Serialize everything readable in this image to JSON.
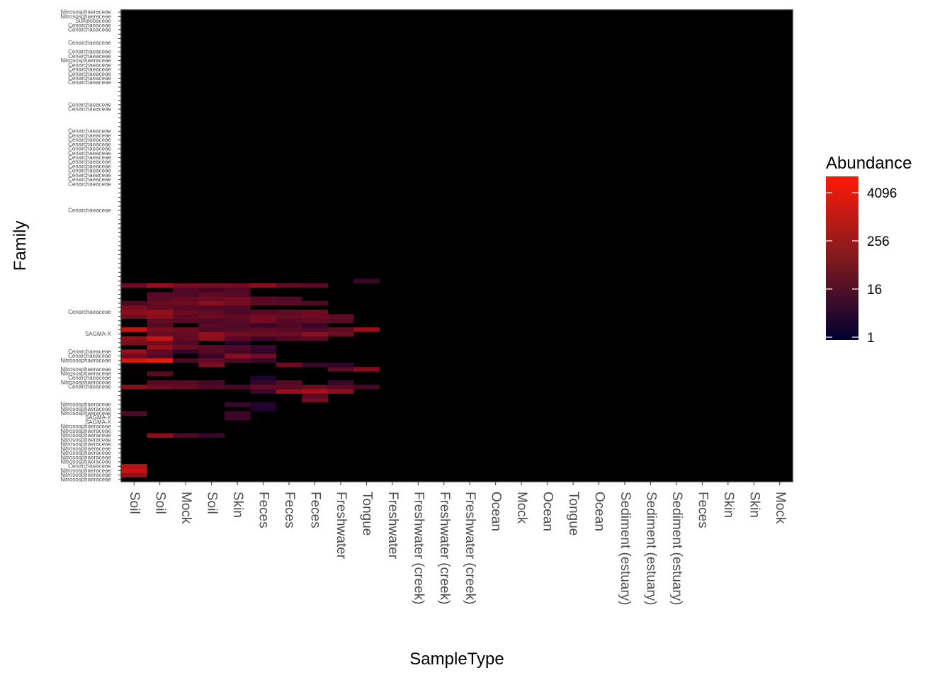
{
  "chart_data": {
    "type": "heatmap",
    "xlabel": "SampleType",
    "ylabel": "Family",
    "x_categories": [
      "Soil",
      "Soil",
      "Mock",
      "Soil",
      "Skin",
      "Feces",
      "Feces",
      "Feces",
      "Freshwater",
      "Tongue",
      "Freshwater",
      "Freshwater (creek)",
      "Freshwater (creek)",
      "Freshwater (creek)",
      "Ocean",
      "Mock",
      "Ocean",
      "Tongue",
      "Ocean",
      "Sediment (estuary)",
      "Sediment (estuary)",
      "Sediment (estuary)",
      "Feces",
      "Skin",
      "Skin",
      "Mock"
    ],
    "y_tick_labels": [
      "Nitrososphaeraceae",
      "Nitrososphaeraceae",
      "Sulfolobaceae",
      "Cenarchaeaceae",
      "Cenarchaeaceae",
      "",
      "",
      "Cenarchaeaceae",
      "",
      "Cenarchaeaceae",
      "Cenarchaeaceae",
      "Nitrososphaeraceae",
      "Cenarchaeaceae",
      "Cenarchaeaceae",
      "Cenarchaeaceae",
      "Cenarchaeaceae",
      "Cenarchaeaceae",
      "",
      "",
      "",
      "",
      "Cenarchaeaceae",
      "Cenarchaeaceae",
      "",
      "",
      "",
      "",
      "Cenarchaeaceae",
      "Cenarchaeaceae",
      "Cenarchaeaceae",
      "Cenarchaeaceae",
      "Cenarchaeaceae",
      "Cenarchaeaceae",
      "Cenarchaeaceae",
      "Cenarchaeaceae",
      "Cenarchaeaceae",
      "Cenarchaeaceae",
      "Cenarchaeaceae",
      "Cenarchaeaceae",
      "Cenarchaeaceae",
      "",
      "",
      "",
      "",
      "",
      "Cenarchaeaceae",
      "",
      "",
      "",
      "",
      "",
      "",
      "",
      "",
      "",
      "",
      "",
      "",
      "",
      "",
      "",
      "",
      "",
      "",
      "",
      "",
      "",
      "",
      "Cenarchaeaceae",
      "",
      "",
      "",
      "",
      "SAGMA-X",
      "",
      "",
      "",
      "Cenarchaeaceae",
      "Cenarchaeaceae",
      "Nitrososphaeraceae",
      "",
      "Nitrososphaeraceae",
      "Nitrososphaeraceae",
      "Cenarchaeaceae",
      "Nitrososphaeraceae",
      "Cenarchaeaceae",
      "",
      "",
      "",
      "Nitrososphaeraceae",
      "Nitrososphaeraceae",
      "Nitrososphaeraceae",
      "SAGMA-X",
      "SAGMA-X",
      "Nitrososphaeraceae",
      "Nitrososphaeraceae",
      "Nitrososphaeraceae",
      "Nitrososphaeraceae",
      "Nitrososphaeraceae",
      "Nitrososphaeraceae",
      "Nitrososphaeraceae",
      "Nitrososphaeraceae",
      "Nitrososphaeraceae",
      "Cenarchaeaceae",
      "Nitrososphaeraceae",
      "Nitrososphaeraceae",
      "Nitrososphaeraceae"
    ],
    "color_scale": {
      "name": "Abundance",
      "transform": "log2",
      "low": "#000033",
      "high": "#FF1A08",
      "breaks": [
        1,
        16,
        256,
        4096
      ],
      "domain": [
        1,
        16384
      ]
    },
    "panel_background": "#000000",
    "cells": [
      [
        0,
        1,
        300
      ],
      [
        0,
        2,
        2000
      ],
      [
        0,
        3,
        1000
      ],
      [
        1,
        10,
        200
      ],
      [
        2,
        10,
        20
      ],
      [
        3,
        10,
        8
      ],
      [
        4,
        14,
        10
      ],
      [
        5,
        16,
        3
      ],
      [
        0,
        15,
        20
      ],
      [
        4,
        15,
        10
      ],
      [
        4,
        17,
        8
      ],
      [
        5,
        17,
        4
      ],
      [
        7,
        18,
        80
      ],
      [
        7,
        19,
        30
      ],
      [
        5,
        20,
        10
      ],
      [
        6,
        20,
        300
      ],
      [
        7,
        20,
        600
      ],
      [
        8,
        20,
        200
      ],
      [
        0,
        21,
        200
      ],
      [
        1,
        21,
        60
      ],
      [
        2,
        21,
        40
      ],
      [
        3,
        21,
        20
      ],
      [
        4,
        21,
        15
      ],
      [
        5,
        21,
        40
      ],
      [
        6,
        21,
        30
      ],
      [
        7,
        21,
        60
      ],
      [
        8,
        21,
        30
      ],
      [
        9,
        21,
        15
      ],
      [
        1,
        22,
        30
      ],
      [
        2,
        22,
        30
      ],
      [
        3,
        22,
        15
      ],
      [
        5,
        22,
        8
      ],
      [
        6,
        22,
        30
      ],
      [
        8,
        22,
        10
      ],
      [
        5,
        23,
        3
      ],
      [
        1,
        24,
        30
      ],
      [
        8,
        25,
        30
      ],
      [
        9,
        25,
        150
      ],
      [
        3,
        26,
        100
      ],
      [
        6,
        26,
        60
      ],
      [
        7,
        26,
        8
      ],
      [
        8,
        26,
        6
      ],
      [
        0,
        27,
        4000
      ],
      [
        1,
        27,
        8000
      ],
      [
        2,
        27,
        20
      ],
      [
        3,
        27,
        40
      ],
      [
        4,
        27,
        20
      ],
      [
        5,
        27,
        8
      ],
      [
        0,
        28,
        60
      ],
      [
        1,
        28,
        20
      ],
      [
        3,
        28,
        8
      ],
      [
        4,
        28,
        200
      ],
      [
        5,
        28,
        80
      ],
      [
        0,
        29,
        300
      ],
      [
        1,
        29,
        40
      ],
      [
        2,
        29,
        6
      ],
      [
        3,
        29,
        30
      ],
      [
        4,
        29,
        15
      ],
      [
        5,
        29,
        6
      ],
      [
        1,
        30,
        300
      ],
      [
        2,
        30,
        60
      ],
      [
        3,
        30,
        30
      ],
      [
        4,
        30,
        20
      ],
      [
        5,
        30,
        8
      ],
      [
        0,
        31,
        100
      ],
      [
        1,
        31,
        80
      ],
      [
        2,
        31,
        20
      ],
      [
        4,
        31,
        4
      ],
      [
        0,
        32,
        200
      ],
      [
        1,
        32,
        2000
      ],
      [
        2,
        32,
        40
      ],
      [
        3,
        32,
        200
      ],
      [
        4,
        32,
        30
      ],
      [
        5,
        32,
        10
      ],
      [
        6,
        32,
        20
      ],
      [
        7,
        32,
        30
      ],
      [
        1,
        33,
        50
      ],
      [
        2,
        33,
        50
      ],
      [
        3,
        33,
        300
      ],
      [
        4,
        33,
        80
      ],
      [
        5,
        33,
        60
      ],
      [
        6,
        33,
        60
      ],
      [
        7,
        33,
        200
      ],
      [
        8,
        33,
        60
      ],
      [
        0,
        34,
        2000
      ],
      [
        1,
        34,
        100
      ],
      [
        2,
        34,
        60
      ],
      [
        3,
        34,
        20
      ],
      [
        4,
        34,
        30
      ],
      [
        5,
        34,
        40
      ],
      [
        6,
        34,
        30
      ],
      [
        7,
        34,
        20
      ],
      [
        8,
        34,
        40
      ],
      [
        9,
        34,
        300
      ],
      [
        1,
        35,
        30
      ],
      [
        3,
        35,
        30
      ],
      [
        4,
        35,
        20
      ],
      [
        5,
        35,
        10
      ],
      [
        6,
        35,
        20
      ],
      [
        7,
        35,
        8
      ],
      [
        1,
        36,
        40
      ],
      [
        2,
        36,
        30
      ],
      [
        3,
        36,
        20
      ],
      [
        4,
        36,
        30
      ],
      [
        5,
        36,
        80
      ],
      [
        6,
        36,
        30
      ],
      [
        7,
        36,
        40
      ],
      [
        8,
        36,
        30
      ],
      [
        0,
        37,
        80
      ],
      [
        1,
        37,
        200
      ],
      [
        2,
        37,
        40
      ],
      [
        3,
        37,
        60
      ],
      [
        4,
        37,
        40
      ],
      [
        5,
        37,
        80
      ],
      [
        6,
        37,
        50
      ],
      [
        7,
        37,
        60
      ],
      [
        8,
        37,
        40
      ],
      [
        0,
        38,
        200
      ],
      [
        1,
        38,
        300
      ],
      [
        2,
        38,
        60
      ],
      [
        3,
        38,
        40
      ],
      [
        4,
        38,
        20
      ],
      [
        5,
        38,
        30
      ],
      [
        6,
        38,
        40
      ],
      [
        7,
        38,
        60
      ],
      [
        0,
        39,
        100
      ],
      [
        1,
        39,
        40
      ],
      [
        2,
        39,
        30
      ],
      [
        3,
        39,
        20
      ],
      [
        4,
        39,
        20
      ],
      [
        0,
        40,
        20
      ],
      [
        1,
        40,
        50
      ],
      [
        2,
        40,
        60
      ],
      [
        3,
        40,
        200
      ],
      [
        4,
        40,
        80
      ],
      [
        5,
        40,
        30
      ],
      [
        6,
        40,
        30
      ],
      [
        7,
        40,
        20
      ],
      [
        1,
        41,
        30
      ],
      [
        2,
        41,
        50
      ],
      [
        3,
        41,
        60
      ],
      [
        4,
        41,
        80
      ],
      [
        5,
        41,
        30
      ],
      [
        6,
        41,
        20
      ],
      [
        1,
        42,
        30
      ],
      [
        2,
        42,
        20
      ],
      [
        3,
        42,
        40
      ],
      [
        4,
        42,
        30
      ],
      [
        2,
        43,
        20
      ],
      [
        3,
        43,
        15
      ],
      [
        4,
        43,
        20
      ],
      [
        0,
        44,
        60
      ],
      [
        1,
        44,
        300
      ],
      [
        2,
        44,
        100
      ],
      [
        3,
        44,
        80
      ],
      [
        4,
        44,
        80
      ],
      [
        5,
        44,
        200
      ],
      [
        6,
        44,
        40
      ],
      [
        7,
        44,
        30
      ],
      [
        9,
        45,
        10
      ]
    ]
  },
  "legend": {
    "title": "Abundance",
    "tick_labels": [
      "4096",
      "256",
      "16",
      "1"
    ]
  },
  "colors": {
    "low": "#000033",
    "high": "#FF1A08",
    "panel": "#000000"
  }
}
